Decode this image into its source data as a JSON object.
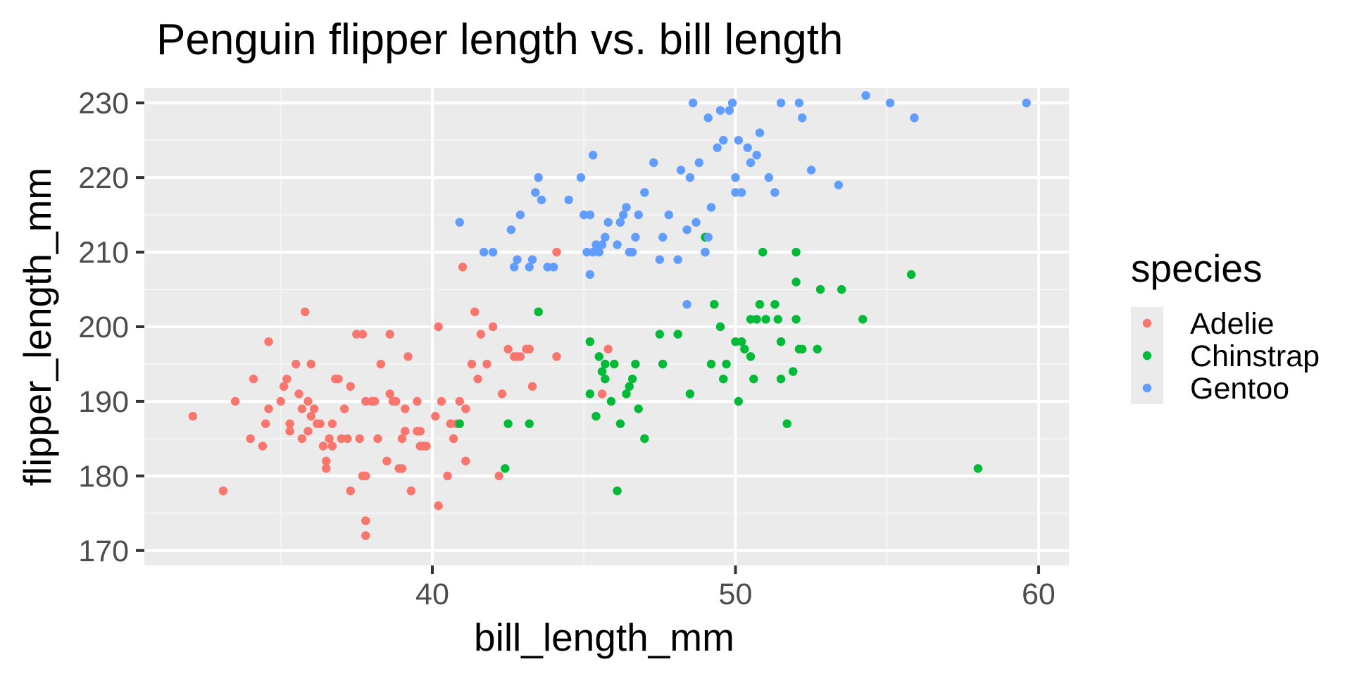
{
  "colors": {
    "panel_background": "#ebebeb",
    "grid_major": "#ffffff",
    "grid_minor": "#f5f5f5",
    "tick_text": "#4d4d4d",
    "Adelie": "#f8766d",
    "Chinstrap": "#00ba38",
    "Gentoo": "#619cff"
  },
  "chart_data": {
    "type": "scatter",
    "title": "Penguin flipper length vs. bill length",
    "xlabel": "bill_length_mm",
    "ylabel": "flipper_length_mm",
    "xlim": [
      30.5,
      61.0
    ],
    "ylim": [
      168.0,
      232.0
    ],
    "x_ticks": [
      40,
      50,
      60
    ],
    "x_tick_labels": [
      "40",
      "50",
      "60"
    ],
    "y_ticks": [
      170,
      180,
      190,
      200,
      210,
      220,
      230
    ],
    "y_tick_labels": [
      "170",
      "180",
      "190",
      "200",
      "210",
      "220",
      "230"
    ],
    "grid": true,
    "legend": {
      "title": "species",
      "position": "right"
    },
    "series": [
      {
        "name": "Adelie",
        "points": [
          [
            32.1,
            188
          ],
          [
            33.1,
            178
          ],
          [
            33.5,
            190
          ],
          [
            34.0,
            185
          ],
          [
            34.1,
            193
          ],
          [
            34.4,
            184
          ],
          [
            34.5,
            187
          ],
          [
            34.6,
            189
          ],
          [
            34.6,
            198
          ],
          [
            35.0,
            190
          ],
          [
            35.1,
            192
          ],
          [
            35.2,
            193
          ],
          [
            35.3,
            187
          ],
          [
            35.3,
            186
          ],
          [
            35.5,
            195
          ],
          [
            35.6,
            191
          ],
          [
            35.7,
            185
          ],
          [
            35.7,
            189
          ],
          [
            35.8,
            202
          ],
          [
            35.9,
            186
          ],
          [
            35.9,
            190
          ],
          [
            36.0,
            188
          ],
          [
            36.0,
            195
          ],
          [
            36.2,
            187
          ],
          [
            36.3,
            187
          ],
          [
            36.4,
            184
          ],
          [
            36.5,
            182
          ],
          [
            36.5,
            181
          ],
          [
            36.6,
            185
          ],
          [
            36.7,
            184
          ],
          [
            36.7,
            187
          ],
          [
            36.8,
            193
          ],
          [
            36.9,
            193
          ],
          [
            37.0,
            185
          ],
          [
            37.2,
            185
          ],
          [
            37.3,
            178
          ],
          [
            37.3,
            192
          ],
          [
            37.5,
            199
          ],
          [
            37.6,
            185
          ],
          [
            37.7,
            180
          ],
          [
            37.7,
            199
          ],
          [
            37.8,
            174
          ],
          [
            37.8,
            172
          ],
          [
            37.8,
            180
          ],
          [
            37.8,
            190
          ],
          [
            38.0,
            190
          ],
          [
            38.1,
            190
          ],
          [
            38.2,
            185
          ],
          [
            38.5,
            182
          ],
          [
            38.6,
            191
          ],
          [
            38.7,
            190
          ],
          [
            38.8,
            190
          ],
          [
            38.9,
            181
          ],
          [
            39.0,
            181
          ],
          [
            39.0,
            185
          ],
          [
            39.1,
            189
          ],
          [
            39.1,
            186
          ],
          [
            39.2,
            196
          ],
          [
            39.3,
            178
          ],
          [
            39.5,
            186
          ],
          [
            39.6,
            184
          ],
          [
            39.6,
            186
          ],
          [
            39.7,
            184
          ],
          [
            39.8,
            184
          ],
          [
            40.1,
            188
          ],
          [
            40.2,
            176
          ],
          [
            40.2,
            200
          ],
          [
            40.3,
            190
          ],
          [
            40.5,
            180
          ],
          [
            40.6,
            187
          ],
          [
            40.8,
            187
          ],
          [
            40.9,
            190
          ],
          [
            41.0,
            208
          ],
          [
            41.1,
            182
          ],
          [
            41.1,
            189
          ],
          [
            41.3,
            195
          ],
          [
            41.4,
            202
          ],
          [
            41.6,
            199
          ],
          [
            41.8,
            195
          ],
          [
            42.0,
            200
          ],
          [
            42.2,
            180
          ],
          [
            42.3,
            191
          ],
          [
            42.5,
            197
          ],
          [
            42.7,
            196
          ],
          [
            42.8,
            196
          ],
          [
            42.9,
            196
          ],
          [
            43.1,
            197
          ],
          [
            43.2,
            197
          ],
          [
            43.3,
            192
          ],
          [
            44.1,
            196
          ],
          [
            44.1,
            210
          ],
          [
            45.6,
            191
          ],
          [
            45.8,
            197
          ],
          [
            38.3,
            195
          ],
          [
            39.5,
            190
          ],
          [
            40.7,
            185
          ],
          [
            38.6,
            199
          ],
          [
            41.5,
            193
          ],
          [
            36.1,
            189
          ],
          [
            37.1,
            189
          ]
        ]
      },
      {
        "name": "Chinstrap",
        "points": [
          [
            40.9,
            187
          ],
          [
            42.4,
            181
          ],
          [
            42.5,
            187
          ],
          [
            43.2,
            187
          ],
          [
            43.5,
            202
          ],
          [
            45.2,
            191
          ],
          [
            45.2,
            198
          ],
          [
            45.4,
            188
          ],
          [
            45.5,
            196
          ],
          [
            45.6,
            194
          ],
          [
            45.7,
            195
          ],
          [
            45.7,
            193
          ],
          [
            45.9,
            190
          ],
          [
            46.0,
            195
          ],
          [
            46.1,
            178
          ],
          [
            46.2,
            187
          ],
          [
            46.4,
            191
          ],
          [
            46.5,
            192
          ],
          [
            46.6,
            193
          ],
          [
            46.7,
            195
          ],
          [
            46.8,
            189
          ],
          [
            47.0,
            185
          ],
          [
            47.5,
            199
          ],
          [
            47.6,
            195
          ],
          [
            48.1,
            199
          ],
          [
            48.5,
            191
          ],
          [
            49.0,
            210
          ],
          [
            49.0,
            212
          ],
          [
            49.2,
            195
          ],
          [
            49.3,
            203
          ],
          [
            49.5,
            200
          ],
          [
            49.6,
            193
          ],
          [
            49.7,
            195
          ],
          [
            50.0,
            198
          ],
          [
            50.1,
            190
          ],
          [
            50.2,
            198
          ],
          [
            50.3,
            197
          ],
          [
            50.5,
            201
          ],
          [
            50.5,
            196
          ],
          [
            50.6,
            193
          ],
          [
            50.8,
            203
          ],
          [
            50.9,
            210
          ],
          [
            51.0,
            201
          ],
          [
            51.3,
            203
          ],
          [
            51.4,
            201
          ],
          [
            51.5,
            193
          ],
          [
            51.5,
            198
          ],
          [
            51.7,
            187
          ],
          [
            51.9,
            194
          ],
          [
            52.0,
            201
          ],
          [
            52.0,
            210
          ],
          [
            52.1,
            197
          ],
          [
            52.2,
            197
          ],
          [
            52.7,
            197
          ],
          [
            52.8,
            205
          ],
          [
            53.5,
            205
          ],
          [
            54.2,
            201
          ],
          [
            55.8,
            207
          ],
          [
            58.0,
            181
          ],
          [
            52.0,
            206
          ],
          [
            50.7,
            201
          ]
        ]
      },
      {
        "name": "Gentoo",
        "points": [
          [
            40.9,
            214
          ],
          [
            41.7,
            210
          ],
          [
            42.0,
            210
          ],
          [
            42.6,
            213
          ],
          [
            42.7,
            208
          ],
          [
            42.8,
            209
          ],
          [
            42.9,
            215
          ],
          [
            43.2,
            208
          ],
          [
            43.3,
            209
          ],
          [
            43.4,
            218
          ],
          [
            43.5,
            220
          ],
          [
            43.6,
            217
          ],
          [
            43.8,
            208
          ],
          [
            44.0,
            208
          ],
          [
            44.5,
            217
          ],
          [
            44.9,
            220
          ],
          [
            45.0,
            215
          ],
          [
            45.1,
            210
          ],
          [
            45.2,
            207
          ],
          [
            45.3,
            210
          ],
          [
            45.3,
            223
          ],
          [
            45.4,
            211
          ],
          [
            45.5,
            210
          ],
          [
            45.6,
            211
          ],
          [
            45.7,
            212
          ],
          [
            45.8,
            214
          ],
          [
            46.1,
            211
          ],
          [
            46.2,
            214
          ],
          [
            46.3,
            215
          ],
          [
            46.4,
            216
          ],
          [
            46.5,
            210
          ],
          [
            46.6,
            210
          ],
          [
            46.8,
            215
          ],
          [
            47.0,
            218
          ],
          [
            47.3,
            222
          ],
          [
            47.5,
            209
          ],
          [
            47.6,
            212
          ],
          [
            47.8,
            215
          ],
          [
            48.1,
            209
          ],
          [
            48.2,
            221
          ],
          [
            48.4,
            213
          ],
          [
            48.5,
            220
          ],
          [
            48.6,
            230
          ],
          [
            48.7,
            214
          ],
          [
            48.8,
            222
          ],
          [
            49.0,
            210
          ],
          [
            49.1,
            228
          ],
          [
            49.2,
            216
          ],
          [
            49.4,
            224
          ],
          [
            49.5,
            229
          ],
          [
            49.6,
            225
          ],
          [
            49.8,
            229
          ],
          [
            49.9,
            230
          ],
          [
            50.0,
            220
          ],
          [
            50.1,
            225
          ],
          [
            50.2,
            218
          ],
          [
            50.4,
            224
          ],
          [
            50.5,
            222
          ],
          [
            50.7,
            223
          ],
          [
            50.8,
            226
          ],
          [
            51.1,
            220
          ],
          [
            51.3,
            218
          ],
          [
            51.5,
            230
          ],
          [
            52.1,
            230
          ],
          [
            52.2,
            228
          ],
          [
            52.5,
            221
          ],
          [
            53.4,
            219
          ],
          [
            54.3,
            231
          ],
          [
            55.1,
            230
          ],
          [
            55.9,
            228
          ],
          [
            59.6,
            230
          ],
          [
            45.2,
            215
          ],
          [
            46.7,
            212
          ],
          [
            48.4,
            203
          ],
          [
            50.0,
            218
          ],
          [
            49.1,
            212
          ]
        ]
      }
    ]
  }
}
